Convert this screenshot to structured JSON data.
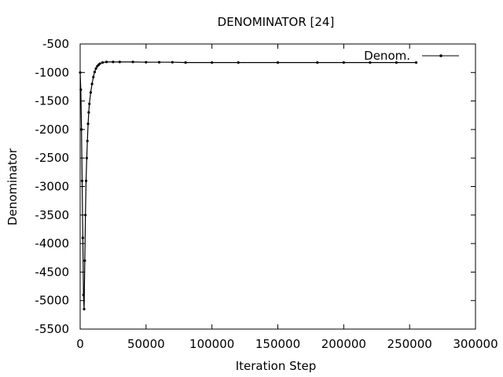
{
  "chart_data": {
    "type": "line",
    "title": "DENOMINATOR [24]",
    "xlabel": "Iteration Step",
    "ylabel": "Denominator",
    "xlim": [
      0,
      300000
    ],
    "ylim": [
      -5500,
      -500
    ],
    "xticks": [
      0,
      50000,
      100000,
      150000,
      200000,
      250000,
      300000
    ],
    "yticks": [
      -5500,
      -5000,
      -4500,
      -4000,
      -3500,
      -3000,
      -2500,
      -2000,
      -1500,
      -1000,
      -500
    ],
    "grid": false,
    "legend_position": "top-right",
    "series": [
      {
        "name": "Denom.",
        "color": "#000000",
        "marker": "dot",
        "x": [
          0,
          500,
          1000,
          1500,
          2000,
          2500,
          3000,
          3500,
          4000,
          4500,
          5000,
          5500,
          6000,
          6500,
          7000,
          8000,
          9000,
          10000,
          11000,
          12000,
          13000,
          14000,
          15000,
          17000,
          20000,
          25000,
          30000,
          40000,
          50000,
          60000,
          70000,
          80000,
          100000,
          120000,
          150000,
          180000,
          200000,
          220000,
          240000,
          255000
        ],
        "y": [
          -1000,
          -1300,
          -2000,
          -2900,
          -3900,
          -4900,
          -5150,
          -4300,
          -3500,
          -2900,
          -2500,
          -2200,
          -1900,
          -1700,
          -1550,
          -1350,
          -1200,
          -1080,
          -990,
          -930,
          -890,
          -865,
          -845,
          -825,
          -815,
          -815,
          -815,
          -815,
          -820,
          -820,
          -820,
          -825,
          -825,
          -825,
          -825,
          -825,
          -825,
          -825,
          -825,
          -825
        ]
      }
    ]
  }
}
